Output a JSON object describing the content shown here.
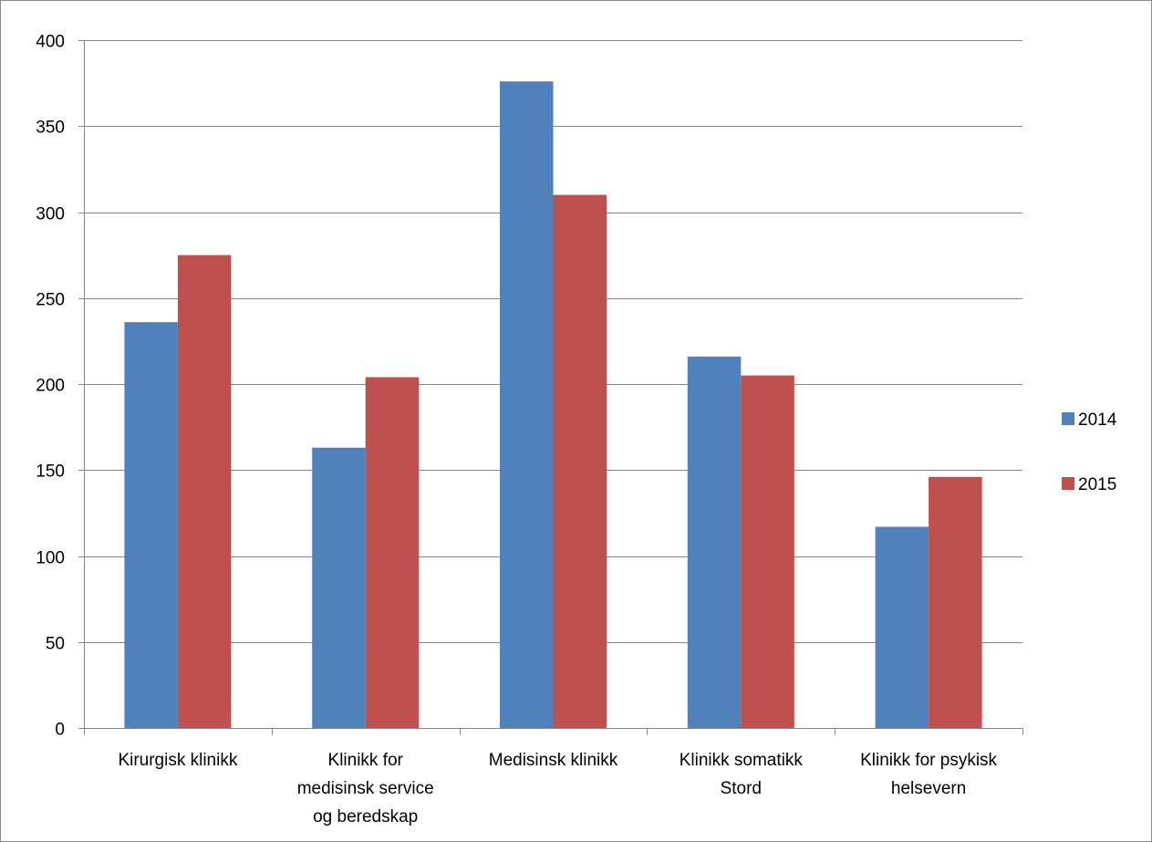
{
  "chart_data": {
    "type": "bar",
    "title": "",
    "xlabel": "",
    "ylabel": "",
    "ylim": [
      0,
      400
    ],
    "y_ticks": [
      0,
      50,
      100,
      150,
      200,
      250,
      300,
      350,
      400
    ],
    "y_tick_labels": [
      "0",
      "50",
      "100",
      "150",
      "200",
      "250",
      "300",
      "350",
      "400"
    ],
    "grid": true,
    "legend_position": "right",
    "categories": [
      [
        "Kirurgisk klinikk"
      ],
      [
        "Klinikk for",
        "medisinsk service",
        "og beredskap"
      ],
      [
        "Medisinsk klinikk"
      ],
      [
        "Klinikk somatikk",
        "Stord"
      ],
      [
        "Klinikk for psykisk",
        "helsevern"
      ]
    ],
    "series": [
      {
        "name": "2014",
        "color": "#4f81bd",
        "values": [
          236,
          163,
          376,
          216,
          117
        ]
      },
      {
        "name": "2015",
        "color": "#c0504d",
        "values": [
          275,
          204,
          310,
          205,
          146
        ]
      }
    ]
  }
}
